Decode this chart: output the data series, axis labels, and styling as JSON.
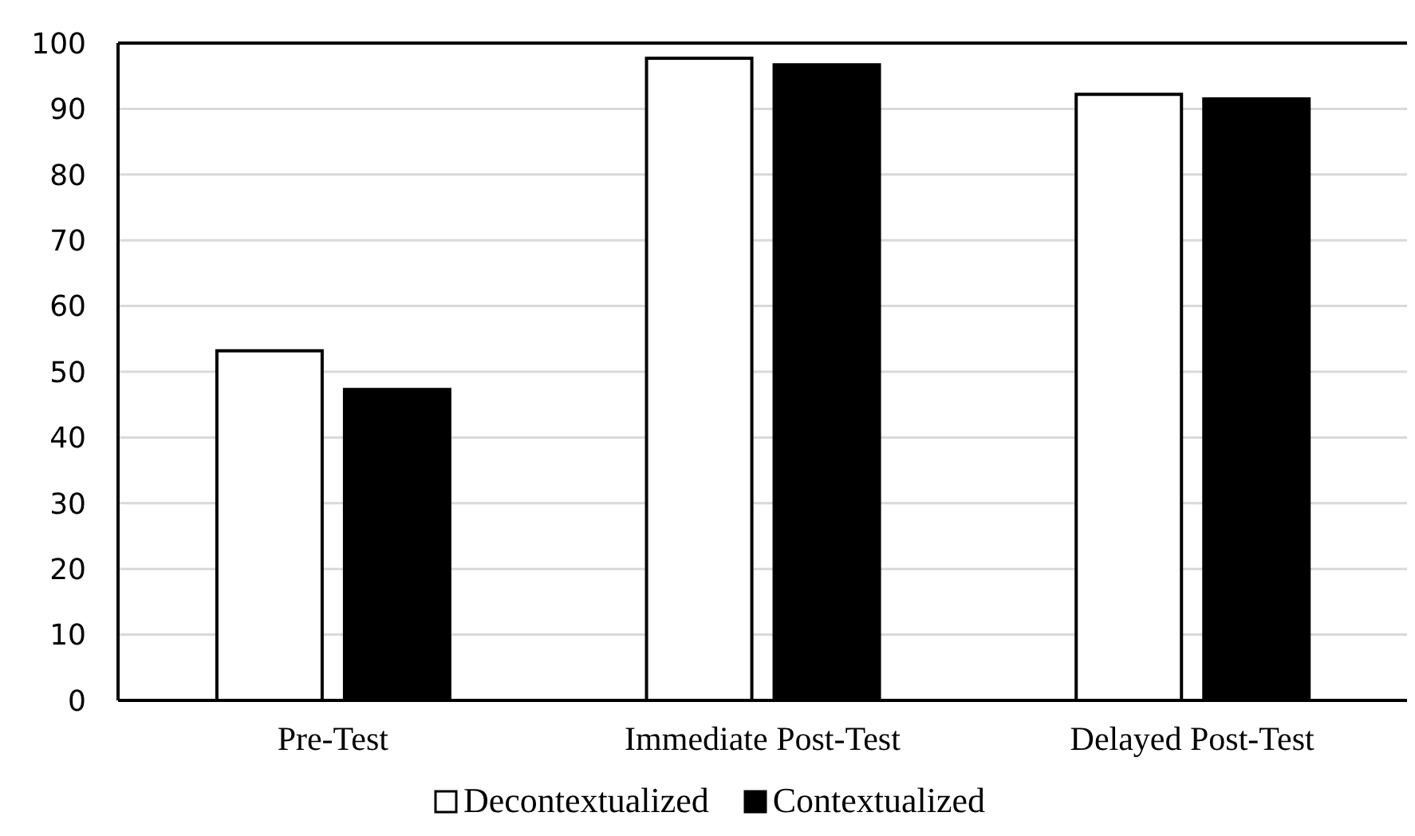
{
  "chart_data": {
    "type": "bar",
    "categories": [
      "Pre-Test",
      "Immediate Post-Test",
      "Delayed Post-Test"
    ],
    "series": [
      {
        "name": "Decontextualized",
        "color": "#ffffff",
        "values": [
          53.2,
          97.7,
          92.2
        ]
      },
      {
        "name": "Contextualized",
        "color": "#000000",
        "values": [
          47.3,
          96.7,
          91.5
        ]
      }
    ],
    "ylim": [
      0,
      100
    ],
    "yticks": [
      0,
      10,
      20,
      30,
      40,
      50,
      60,
      70,
      80,
      90,
      100
    ],
    "grid": "y",
    "legend": "bottom"
  }
}
